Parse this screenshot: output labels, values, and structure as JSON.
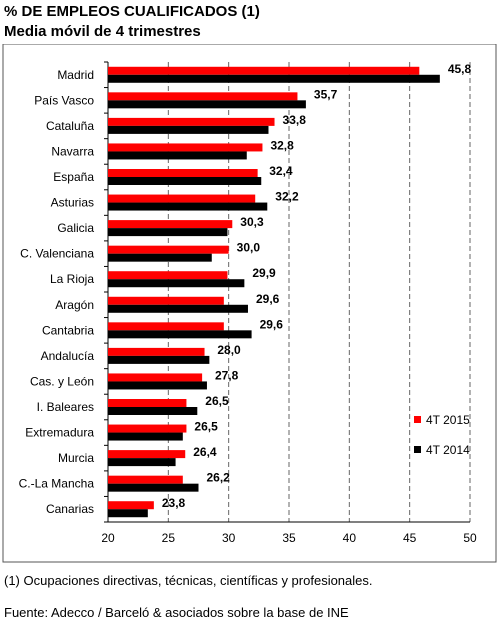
{
  "title": "% DE EMPLEOS CUALIFICADOS (1)",
  "subtitle": "Media móvil de 4 trimestres",
  "footnote": "(1) Ocupaciones directivas, técnicas, científicas y profesionales.",
  "source": "Fuente: Adecco / Barceló & asociados sobre la base de INE",
  "colors": {
    "series_2015": "#ff0000",
    "series_2014": "#000000"
  },
  "chart_data": {
    "type": "bar",
    "orientation": "horizontal",
    "categories": [
      "Madrid",
      "País Vasco",
      "Cataluña",
      "Navarra",
      "España",
      "Asturias",
      "Galicia",
      "C. Valenciana",
      "La Rioja",
      "Aragón",
      "Cantabria",
      "Andalucía",
      "Cas. y León",
      "I. Baleares",
      "Extremadura",
      "Murcia",
      "C.-La Mancha",
      "Canarias"
    ],
    "series": [
      {
        "name": "4T 2015",
        "color": "#ff0000",
        "values": [
          45.8,
          35.7,
          33.8,
          32.8,
          32.4,
          32.2,
          30.3,
          30.0,
          29.9,
          29.6,
          29.6,
          28.0,
          27.8,
          26.5,
          26.5,
          26.4,
          26.2,
          23.8
        ]
      },
      {
        "name": "4T 2014",
        "color": "#000000",
        "values": [
          47.5,
          36.4,
          33.3,
          31.5,
          32.7,
          33.2,
          29.9,
          28.6,
          31.3,
          31.6,
          31.9,
          28.4,
          28.2,
          27.4,
          26.2,
          25.6,
          27.5,
          23.3
        ]
      }
    ],
    "data_labels": [
      "45,8",
      "35,7",
      "33,8",
      "32,8",
      "32,4",
      "32,2",
      "30,3",
      "30,0",
      "29,9",
      "29,6",
      "29,6",
      "28,0",
      "27,8",
      "26,5",
      "26,5",
      "26,4",
      "26,2",
      "23,8"
    ],
    "xticks": [
      "20",
      "25",
      "30",
      "35",
      "40",
      "45",
      "50"
    ],
    "xlim": [
      20,
      50
    ],
    "grid": "vertical dashed",
    "legend_position": "bottom-right"
  }
}
